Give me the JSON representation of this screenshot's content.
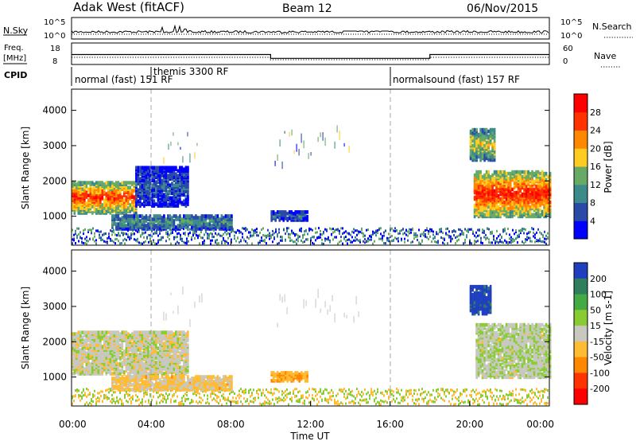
{
  "header": {
    "radar": "Adak West (fitACF)",
    "beam": "Beam 12",
    "date": "06/Nov/2015"
  },
  "top_panels": {
    "nsky_label": "N.Sky",
    "nsearch_label": "N.Search",
    "noise_ticks_left": [
      "10^5",
      "10^0"
    ],
    "noise_ticks_right": [
      "10^5",
      "10^0"
    ],
    "freq_label_line1": "Freq.",
    "freq_label_line2": "[MHz]",
    "freq_ticks": [
      "18",
      "8"
    ],
    "nave_label": "Nave",
    "nave_ticks": [
      "60",
      "0"
    ],
    "cpid_label": "CPID",
    "cpid_segments": [
      {
        "label": "normal (fast) 151 RF",
        "start_h": 0,
        "end_h": 4
      },
      {
        "label": "themis 3300 RF",
        "start_h": 4,
        "end_h": 16
      },
      {
        "label": "normalsound (fast) 157 RF",
        "start_h": 16,
        "end_h": 24
      }
    ],
    "freq_steps": [
      {
        "start_h": 0,
        "end_h": 10,
        "mhz": 12.6
      },
      {
        "start_h": 10,
        "end_h": 18,
        "mhz": 10.7
      },
      {
        "start_h": 18,
        "end_h": 24,
        "mhz": 12.6
      }
    ]
  },
  "chart_data": [
    {
      "type": "heatmap",
      "name": "power",
      "ylabel": "Slant Range [km]",
      "yticks": [
        "1000",
        "2000",
        "3000",
        "4000"
      ],
      "ylim": [
        180,
        4600
      ],
      "xlim": [
        0,
        24
      ],
      "colorbar_label": "Power [dB]",
      "colorbar_ticks": [
        "4",
        "8",
        "12",
        "16",
        "20",
        "24",
        "28"
      ],
      "colorbar_range": [
        0,
        32
      ],
      "colors": [
        "#0000ff",
        "#2a4aa8",
        "#3d8a8a",
        "#66aa66",
        "#ffcc22",
        "#ff8800",
        "#ff3300",
        "#ff0000"
      ],
      "regions": [
        {
          "t0": 0.0,
          "t1": 3.2,
          "r0": 1100,
          "r1": 2000,
          "level": 0.8
        },
        {
          "t0": 3.2,
          "t1": 5.8,
          "r0": 1300,
          "r1": 2400,
          "level": 0.2
        },
        {
          "t0": 2.0,
          "t1": 8.0,
          "r0": 650,
          "r1": 1050,
          "level": 0.35
        },
        {
          "t0": 10.0,
          "t1": 11.8,
          "r0": 900,
          "r1": 1150,
          "level": 0.25
        },
        {
          "t0": 20.2,
          "t1": 24.0,
          "r0": 1000,
          "r1": 2300,
          "level": 0.85
        },
        {
          "t0": 20.0,
          "t1": 21.2,
          "r0": 2600,
          "r1": 3500,
          "level": 0.55
        }
      ]
    },
    {
      "type": "heatmap",
      "name": "velocity",
      "ylabel": "Slant Range [km]",
      "yticks": [
        "1000",
        "2000",
        "3000",
        "4000"
      ],
      "ylim": [
        180,
        4600
      ],
      "xlim": [
        0,
        24
      ],
      "xticks": [
        "00:00",
        "04:00",
        "08:00",
        "12:00",
        "16:00",
        "20:00",
        "00:00"
      ],
      "xlabel": "Time UT",
      "colorbar_label": "Velocity [m s-1]",
      "colorbar_ticks": [
        "200",
        "100",
        "50",
        "15",
        "-15",
        "-50",
        "-100",
        "-200"
      ],
      "colors": [
        "#1f3fbf",
        "#2f7f5f",
        "#44aa44",
        "#88cc33",
        "#c8c8c0",
        "#ffbb33",
        "#ff8800",
        "#ff3300",
        "#ff0000"
      ],
      "regions": [
        {
          "t0": 0.0,
          "t1": 5.8,
          "r0": 1100,
          "r1": 2300,
          "level": 0.5
        },
        {
          "t0": 2.0,
          "t1": 8.0,
          "r0": 650,
          "r1": 1050,
          "level": 0.58
        },
        {
          "t0": 10.0,
          "t1": 11.8,
          "r0": 900,
          "r1": 1150,
          "level": 0.65
        },
        {
          "t0": 20.3,
          "t1": 24.0,
          "r0": 1000,
          "r1": 2500,
          "level": 0.47
        },
        {
          "t0": 20.0,
          "t1": 21.0,
          "r0": 2800,
          "r1": 3600,
          "level": 0.05
        }
      ]
    }
  ]
}
